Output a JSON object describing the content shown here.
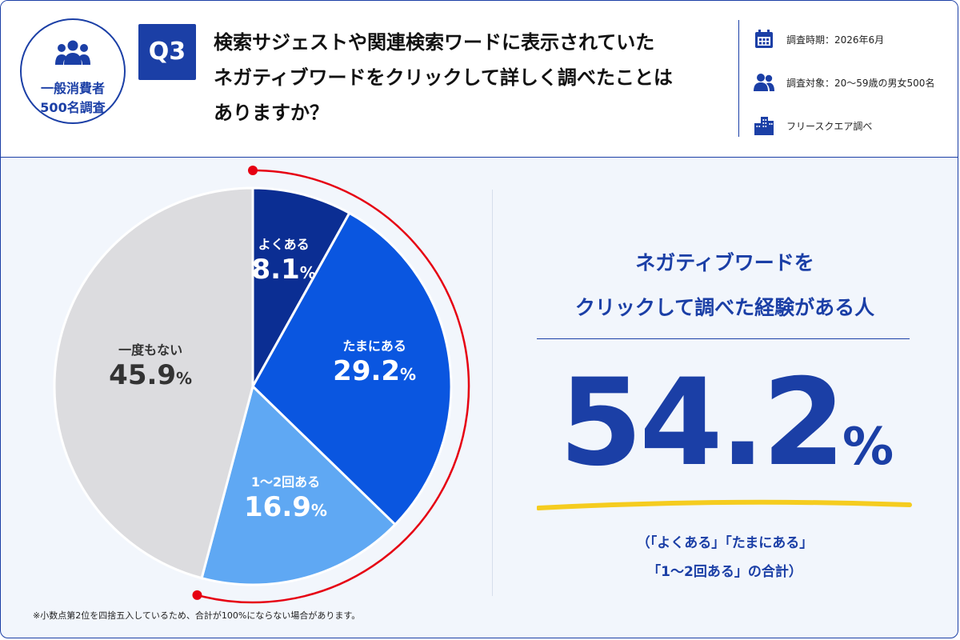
{
  "badge": {
    "line1": "一般消費者",
    "line2": "500名調査",
    "icon": "people-group-icon"
  },
  "question": {
    "number": "Q3",
    "lines": [
      "検索サジェストや関連検索ワードに表示されていた",
      "ネガティブワードをクリックして詳しく調べたことは",
      "ありますか？"
    ]
  },
  "meta": [
    {
      "icon": "calendar-icon",
      "text": "調査時期：2026年6月"
    },
    {
      "icon": "people-icon",
      "text": "調査対象：20〜59歳の男女500名"
    },
    {
      "icon": "building-icon",
      "text": "フリースクエア調べ"
    }
  ],
  "chart_data": {
    "type": "pie",
    "unit": "%",
    "slices": [
      {
        "label": "よくある",
        "value": 8.1,
        "color": "#0b2e93",
        "text_color": "#ffffff"
      },
      {
        "label": "たまにある",
        "value": 29.2,
        "color": "#0a56e0",
        "text_color": "#ffffff"
      },
      {
        "label": "1〜2回ある",
        "value": 16.9,
        "color": "#5fa8f3",
        "text_color": "#ffffff"
      },
      {
        "label": "一度もない",
        "value": 45.9,
        "color": "#dcdcdf",
        "text_color": "#333333"
      }
    ],
    "highlight_arc_color": "#e60012"
  },
  "summary": {
    "title_lines": [
      "ネガティブワードを",
      "クリックして調べた経験がある人"
    ],
    "value": "54.2",
    "unit": "%",
    "note_lines": [
      "（「よくある」「たまにある」",
      "「1〜2回ある」の合計）"
    ],
    "accent_color": "#1b3fa6",
    "underline_color": "#f5cc1f"
  },
  "footnote": "※小数点第2位を四捨五入しているため、合計が100%にならない場合があります。"
}
